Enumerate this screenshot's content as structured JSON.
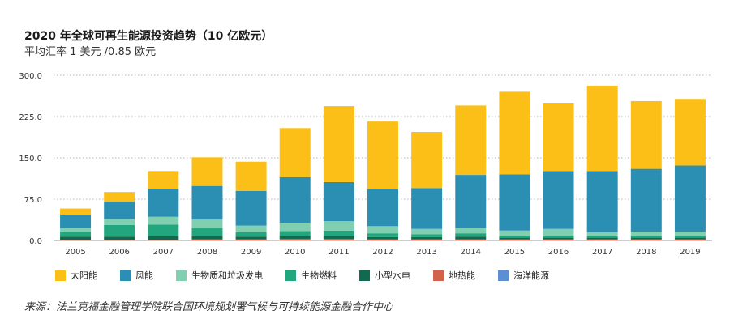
{
  "title": "2020 年全球可再生能源投资趋势（10 亿欧元）",
  "subtitle": "平均汇率 1 美元 /0.85 欧元",
  "source": "来源：法兰克福金融管理学院联合国环境规划署气候与可持续能源金融合作中心",
  "chart_data": {
    "type": "bar",
    "stacked": true,
    "title": "2020 年全球可再生能源投资趋势（10 亿欧元）",
    "ylim": [
      0,
      300
    ],
    "yticks": [
      "0.0",
      "75.0",
      "150.0",
      "225.0",
      "300.0"
    ],
    "ytick_values": [
      0,
      75,
      150,
      225,
      300
    ],
    "grid": "dotted-horizontal",
    "legend_position": "bottom",
    "categories": [
      "2005",
      "2006",
      "2007",
      "2008",
      "2009",
      "2010",
      "2011",
      "2012",
      "2013",
      "2014",
      "2015",
      "2016",
      "2017",
      "2018",
      "2019"
    ],
    "series": [
      {
        "name": "海洋能源",
        "color": "#5b8fd1",
        "values": [
          0,
          0,
          0,
          0,
          0,
          0,
          0,
          0,
          0,
          0,
          0,
          0,
          0,
          0,
          0
        ]
      },
      {
        "name": "地热能",
        "color": "#d2634a",
        "values": [
          1,
          1,
          1,
          2,
          2,
          3,
          3,
          2,
          2,
          2,
          2,
          2,
          2,
          2,
          2
        ]
      },
      {
        "name": "小型水电",
        "color": "#0f6a4f",
        "values": [
          6,
          6,
          7,
          6,
          5,
          5,
          5,
          4,
          4,
          5,
          3,
          3,
          3,
          3,
          3
        ]
      },
      {
        "name": "生物燃料",
        "color": "#21a67d",
        "values": [
          9,
          21,
          21,
          14,
          8,
          9,
          10,
          7,
          5,
          6,
          3,
          3,
          3,
          3,
          3
        ]
      },
      {
        "name": "生物质和垃圾发电",
        "color": "#7fcfb0",
        "values": [
          6,
          11,
          14,
          16,
          12,
          15,
          17,
          13,
          10,
          10,
          10,
          13,
          7,
          8,
          8
        ]
      },
      {
        "name": "风能",
        "color": "#2b8fb3",
        "values": [
          25,
          32,
          51,
          61,
          63,
          83,
          71,
          67,
          74,
          96,
          102,
          105,
          111,
          114,
          120
        ]
      },
      {
        "name": "太阳能",
        "color": "#fbbf18",
        "values": [
          11,
          17,
          32,
          52,
          53,
          89,
          138,
          123,
          102,
          126,
          150,
          124,
          155,
          123,
          121
        ]
      }
    ]
  },
  "legend": [
    {
      "label": "太阳能",
      "color": "#fbbf18"
    },
    {
      "label": "风能",
      "color": "#2b8fb3"
    },
    {
      "label": "生物质和垃圾发电",
      "color": "#7fcfb0"
    },
    {
      "label": "生物燃料",
      "color": "#21a67d"
    },
    {
      "label": "小型水电",
      "color": "#0f6a4f"
    },
    {
      "label": "地热能",
      "color": "#d2634a"
    },
    {
      "label": "海洋能源",
      "color": "#5b8fd1"
    }
  ]
}
